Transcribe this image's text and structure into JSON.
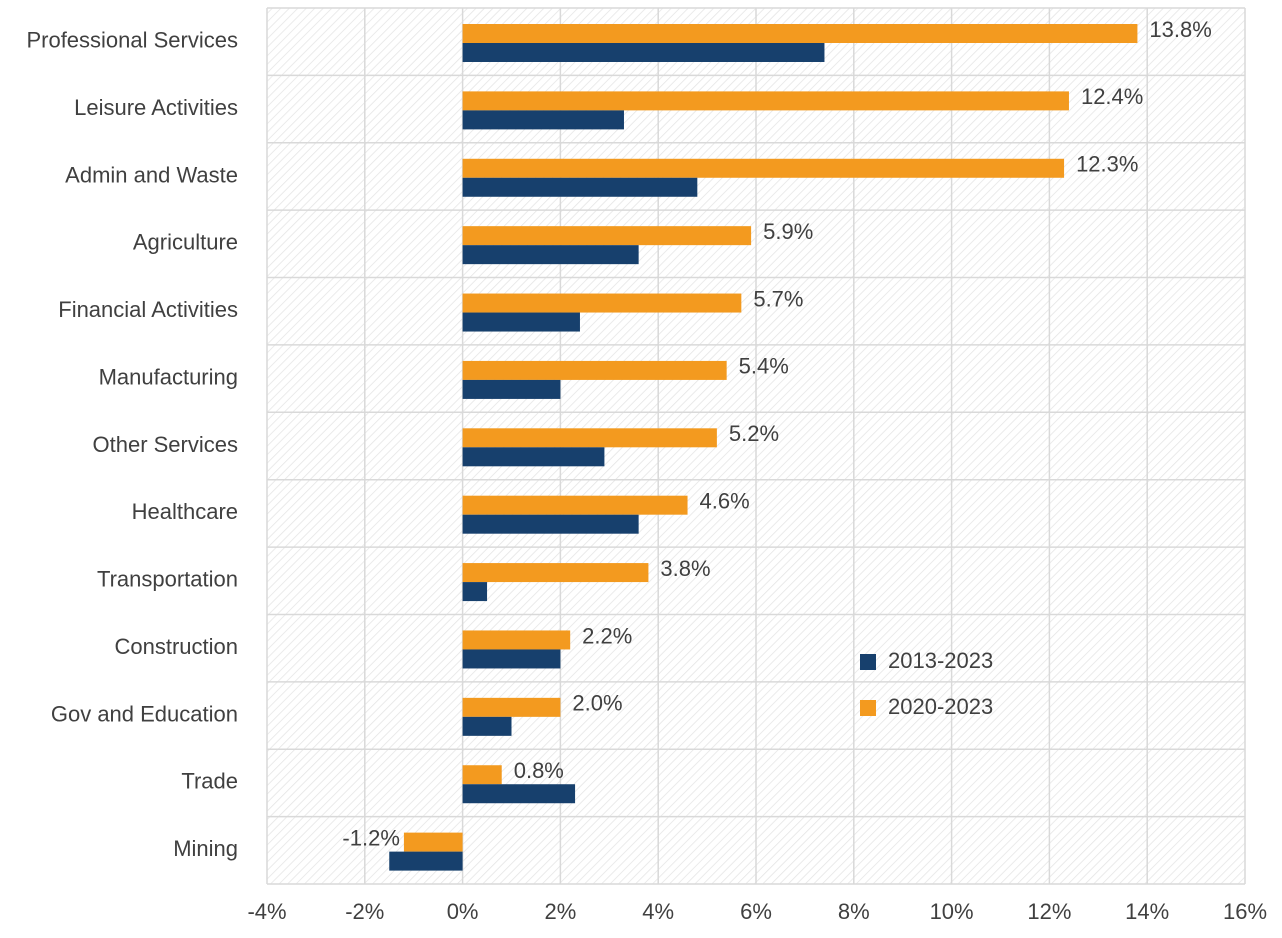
{
  "chart_data": {
    "type": "barh",
    "categories": [
      "Professional Services",
      "Leisure Activities",
      "Admin and Waste",
      "Agriculture",
      "Financial Activities",
      "Manufacturing",
      "Other Services",
      "Healthcare",
      "Transportation",
      "Construction",
      "Gov and Education",
      "Trade",
      "Mining"
    ],
    "series": [
      {
        "name": "2013-2023",
        "color": "#17406d",
        "values": [
          7.4,
          3.3,
          4.8,
          3.6,
          2.4,
          2.0,
          2.9,
          3.6,
          0.5,
          2.0,
          1.0,
          2.3,
          -1.5
        ]
      },
      {
        "name": "2020-2023",
        "color": "#f39a1f",
        "values": [
          13.8,
          12.4,
          12.3,
          5.9,
          5.7,
          5.4,
          5.2,
          4.6,
          3.8,
          2.2,
          2.0,
          0.8,
          -1.2
        ],
        "value_labels": [
          "13.8%",
          "12.4%",
          "12.3%",
          "5.9%",
          "5.7%",
          "5.4%",
          "5.2%",
          "4.6%",
          "3.8%",
          "2.2%",
          "2.0%",
          "0.8%",
          "-1.2%"
        ]
      }
    ],
    "xlim": [
      -4,
      16
    ],
    "xticks": [
      {
        "value": -4,
        "label": "-4%"
      },
      {
        "value": -2,
        "label": "-2%"
      },
      {
        "value": 0,
        "label": "0%"
      },
      {
        "value": 2,
        "label": "2%"
      },
      {
        "value": 4,
        "label": "4%"
      },
      {
        "value": 6,
        "label": "6%"
      },
      {
        "value": 8,
        "label": "8%"
      },
      {
        "value": 10,
        "label": "10%"
      },
      {
        "value": 12,
        "label": "12%"
      },
      {
        "value": 14,
        "label": "14%"
      },
      {
        "value": 16,
        "label": "16%"
      }
    ],
    "grid": true,
    "legend": "inside-right"
  }
}
